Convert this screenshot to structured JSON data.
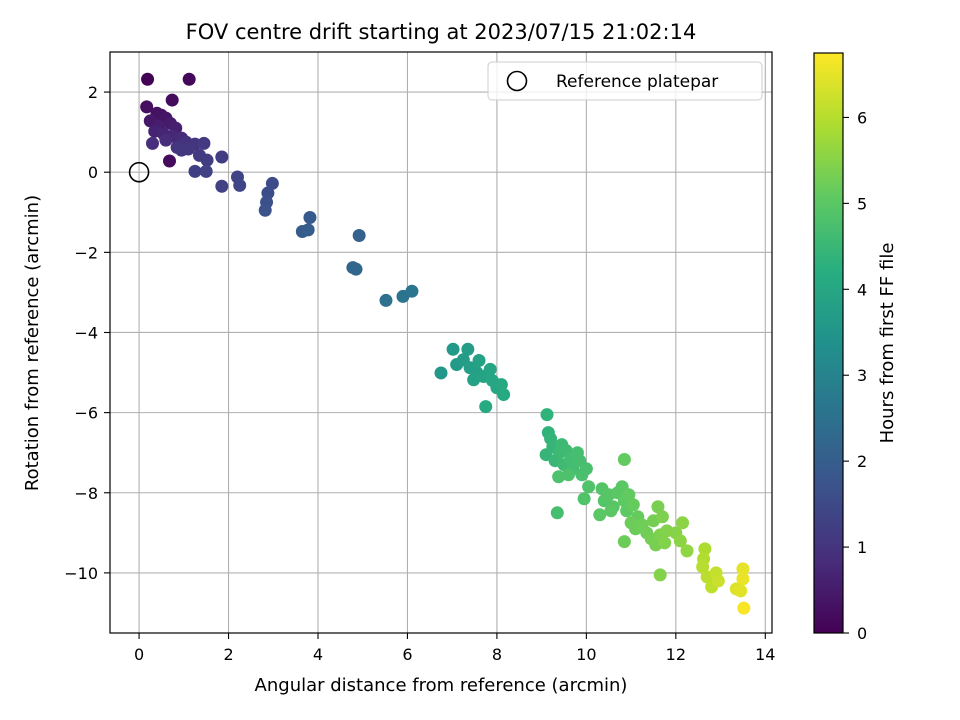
{
  "chart_data": {
    "type": "scatter",
    "title": "FOV centre drift starting at 2023/07/15 21:02:14",
    "xlabel": "Angular distance from reference (arcmin)",
    "ylabel": "Rotation from reference (arcmin)",
    "xlim": [
      -0.65,
      14.15
    ],
    "ylim": [
      -11.5,
      3.0
    ],
    "xticks": [
      0,
      2,
      4,
      6,
      8,
      10,
      12,
      14
    ],
    "yticks": [
      2,
      0,
      -2,
      -4,
      -6,
      -8,
      -10
    ],
    "grid": true,
    "legend": {
      "placement": "top-right",
      "entries": [
        "Reference platepar"
      ]
    },
    "reference_point": {
      "x": 0,
      "y": 0,
      "label": "Reference platepar"
    },
    "colorbar": {
      "label": "Hours from first FF file",
      "colormap": "viridis",
      "range": [
        0,
        6.75
      ],
      "ticks": [
        0,
        1,
        2,
        3,
        4,
        5,
        6
      ]
    },
    "points": [
      [
        0.19,
        2.32,
        0.05
      ],
      [
        1.12,
        2.32,
        0.15
      ],
      [
        0.74,
        1.8,
        0.2
      ],
      [
        0.17,
        1.63,
        0.25
      ],
      [
        0.4,
        1.47,
        0.3
      ],
      [
        0.5,
        1.42,
        0.35
      ],
      [
        0.6,
        1.35,
        0.4
      ],
      [
        0.25,
        1.28,
        0.45
      ],
      [
        0.7,
        1.22,
        0.5
      ],
      [
        0.45,
        1.15,
        0.55
      ],
      [
        0.82,
        1.1,
        0.6
      ],
      [
        0.35,
        1.02,
        0.65
      ],
      [
        0.55,
        0.95,
        0.7
      ],
      [
        0.75,
        0.9,
        0.75
      ],
      [
        0.95,
        0.85,
        0.8
      ],
      [
        0.6,
        0.8,
        0.85
      ],
      [
        0.3,
        0.72,
        0.9
      ],
      [
        1.05,
        0.75,
        0.95
      ],
      [
        1.25,
        0.7,
        1.0
      ],
      [
        0.85,
        0.62,
        1.0
      ],
      [
        1.1,
        0.58,
        1.05
      ],
      [
        0.95,
        0.55,
        1.1
      ],
      [
        1.45,
        0.72,
        1.15
      ],
      [
        0.68,
        0.28,
        0.2
      ],
      [
        1.35,
        0.42,
        1.15
      ],
      [
        1.52,
        0.3,
        1.2
      ],
      [
        1.85,
        0.38,
        1.2
      ],
      [
        1.25,
        0.02,
        1.25
      ],
      [
        1.5,
        0.02,
        1.3
      ],
      [
        1.85,
        -0.35,
        1.3
      ],
      [
        2.2,
        -0.12,
        1.35
      ],
      [
        2.25,
        -0.33,
        1.4
      ],
      [
        2.98,
        -0.28,
        1.55
      ],
      [
        2.88,
        -0.52,
        1.6
      ],
      [
        2.85,
        -0.75,
        1.65
      ],
      [
        2.82,
        -0.95,
        1.7
      ],
      [
        3.82,
        -1.13,
        1.9
      ],
      [
        3.65,
        -1.48,
        1.95
      ],
      [
        3.78,
        -1.44,
        2.0
      ],
      [
        4.92,
        -1.58,
        2.1
      ],
      [
        4.78,
        -2.38,
        2.2
      ],
      [
        4.85,
        -2.42,
        2.25
      ],
      [
        5.52,
        -3.2,
        2.5
      ],
      [
        5.9,
        -3.1,
        2.55
      ],
      [
        6.1,
        -2.97,
        2.6
      ],
      [
        6.75,
        -5.01,
        3.55
      ],
      [
        7.02,
        -4.42,
        3.6
      ],
      [
        7.1,
        -4.8,
        3.65
      ],
      [
        7.25,
        -4.68,
        3.7
      ],
      [
        7.35,
        -4.42,
        3.7
      ],
      [
        7.4,
        -4.88,
        3.75
      ],
      [
        7.55,
        -5.0,
        3.8
      ],
      [
        7.6,
        -4.7,
        3.85
      ],
      [
        7.48,
        -5.18,
        3.85
      ],
      [
        7.7,
        -5.1,
        3.9
      ],
      [
        7.85,
        -4.92,
        3.95
      ],
      [
        7.9,
        -5.2,
        4.0
      ],
      [
        8.0,
        -5.38,
        4.0
      ],
      [
        8.1,
        -5.3,
        4.05
      ],
      [
        8.15,
        -5.55,
        4.1
      ],
      [
        7.75,
        -5.85,
        4.1
      ],
      [
        9.12,
        -6.05,
        4.35
      ],
      [
        9.15,
        -6.5,
        4.35
      ],
      [
        9.2,
        -6.65,
        4.4
      ],
      [
        9.25,
        -6.85,
        4.45
      ],
      [
        9.1,
        -7.05,
        4.45
      ],
      [
        9.3,
        -7.2,
        4.5
      ],
      [
        9.4,
        -7.0,
        4.55
      ],
      [
        9.45,
        -6.8,
        4.55
      ],
      [
        9.55,
        -6.95,
        4.6
      ],
      [
        9.5,
        -7.3,
        4.6
      ],
      [
        9.65,
        -7.15,
        4.65
      ],
      [
        9.7,
        -7.4,
        4.65
      ],
      [
        9.8,
        -7.0,
        4.7
      ],
      [
        9.85,
        -7.2,
        4.7
      ],
      [
        9.9,
        -7.55,
        4.75
      ],
      [
        10.0,
        -7.4,
        4.75
      ],
      [
        9.38,
        -7.6,
        4.8
      ],
      [
        9.6,
        -7.55,
        4.8
      ],
      [
        10.05,
        -7.85,
        4.85
      ],
      [
        9.95,
        -8.15,
        4.85
      ],
      [
        10.35,
        -7.9,
        4.9
      ],
      [
        10.4,
        -8.2,
        4.9
      ],
      [
        10.5,
        -8.05,
        4.95
      ],
      [
        10.6,
        -8.35,
        4.95
      ],
      [
        10.7,
        -8.0,
        5.0
      ],
      [
        10.8,
        -7.85,
        5.0
      ],
      [
        10.85,
        -8.2,
        5.05
      ],
      [
        10.9,
        -8.45,
        5.05
      ],
      [
        10.3,
        -8.55,
        5.0
      ],
      [
        10.55,
        -8.45,
        5.0
      ],
      [
        9.35,
        -8.5,
        4.7
      ],
      [
        10.85,
        -7.17,
        5.1
      ],
      [
        10.95,
        -8.05,
        5.1
      ],
      [
        11.05,
        -8.3,
        5.15
      ],
      [
        11.15,
        -8.6,
        5.15
      ],
      [
        11.0,
        -8.75,
        5.2
      ],
      [
        11.1,
        -8.9,
        5.2
      ],
      [
        11.25,
        -8.8,
        5.25
      ],
      [
        11.35,
        -9.0,
        5.25
      ],
      [
        10.85,
        -9.22,
        5.2
      ],
      [
        11.45,
        -9.15,
        5.3
      ],
      [
        11.5,
        -8.7,
        5.3
      ],
      [
        11.6,
        -8.35,
        5.35
      ],
      [
        11.55,
        -9.3,
        5.35
      ],
      [
        11.65,
        -9.05,
        5.4
      ],
      [
        11.7,
        -8.6,
        5.4
      ],
      [
        11.75,
        -9.25,
        5.45
      ],
      [
        11.8,
        -8.95,
        5.45
      ],
      [
        11.65,
        -10.05,
        5.45
      ],
      [
        12.0,
        -9.0,
        5.5
      ],
      [
        12.1,
        -9.2,
        5.55
      ],
      [
        12.15,
        -8.75,
        5.55
      ],
      [
        12.25,
        -9.45,
        5.6
      ],
      [
        12.65,
        -9.4,
        5.9
      ],
      [
        12.62,
        -9.65,
        5.95
      ],
      [
        12.6,
        -9.85,
        6.0
      ],
      [
        12.7,
        -10.1,
        6.05
      ],
      [
        12.8,
        -10.35,
        6.1
      ],
      [
        12.9,
        -10.0,
        6.15
      ],
      [
        12.95,
        -10.2,
        6.2
      ],
      [
        13.35,
        -10.4,
        6.4
      ],
      [
        13.45,
        -10.45,
        6.45
      ],
      [
        13.5,
        -9.9,
        6.5
      ],
      [
        13.5,
        -10.15,
        6.55
      ],
      [
        13.52,
        -10.88,
        6.7
      ]
    ]
  }
}
